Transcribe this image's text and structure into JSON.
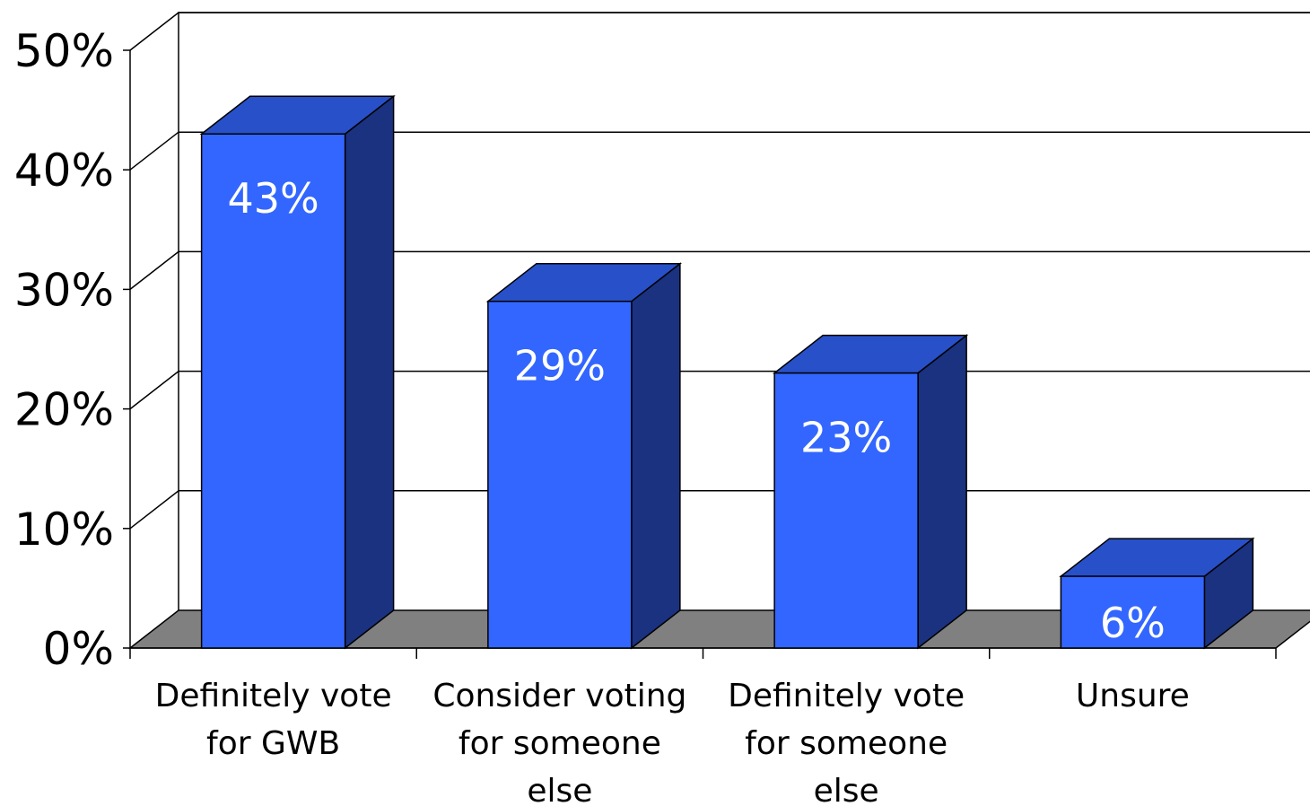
{
  "chart_data": {
    "type": "bar",
    "style": "3d-column",
    "categories": [
      [
        "Definitely vote",
        "for GWB"
      ],
      [
        "Consider voting",
        "for someone",
        "else"
      ],
      [
        "Definitely vote",
        "for someone",
        "else"
      ],
      [
        "Unsure"
      ]
    ],
    "values": [
      43,
      29,
      23,
      6
    ],
    "data_labels": [
      "43%",
      "29%",
      "23%",
      "6%"
    ],
    "yticks": [
      "0%",
      "10%",
      "20%",
      "30%",
      "40%",
      "50%"
    ],
    "ylim": [
      0,
      50
    ],
    "title": "",
    "xlabel": "",
    "ylabel": "",
    "grid": true,
    "legend": "none",
    "colors": {
      "bar_front": "#3366ff",
      "bar_top": "#2850c8",
      "bar_side": "#1a3280",
      "floor": "#808080",
      "grid": "#000000"
    }
  }
}
